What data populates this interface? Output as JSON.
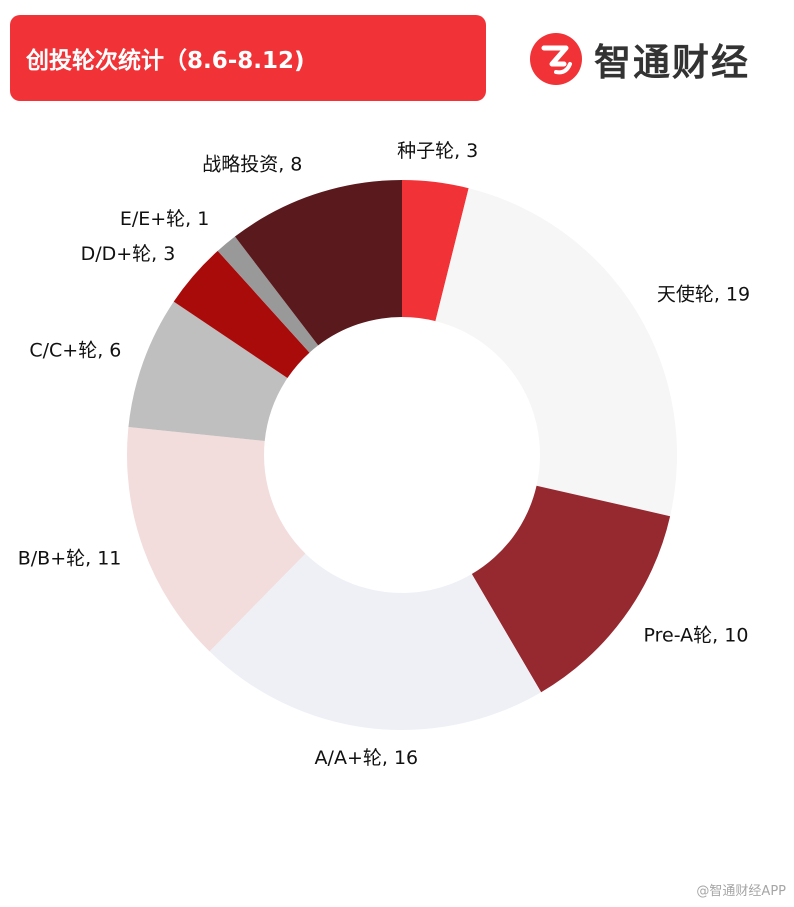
{
  "header": {
    "title": "创投轮次统计（8.6-8.12)"
  },
  "brand": {
    "name": "智通财经",
    "logo_icon": "zhitong-logo-icon",
    "logo_color": "#f13337"
  },
  "chart_data": {
    "type": "pie",
    "donut": true,
    "categories": [
      "种子轮",
      "天使轮",
      "Pre-A轮",
      "A/A+轮",
      "B/B+轮",
      "C/C+轮",
      "D/D+轮",
      "E/E+轮",
      "战略投资"
    ],
    "values": [
      3,
      19,
      10,
      16,
      11,
      6,
      3,
      1,
      8
    ],
    "labels": [
      "种子轮, 3",
      "天使轮, 19",
      "Pre-A轮, 10",
      "A/A+轮, 16",
      "B/B+轮, 11",
      "C/C+轮, 6",
      "D/D+轮, 3",
      "E/E+轮, 1",
      "战略投资, 8"
    ],
    "colors": [
      "#f13337",
      "#f6f6f6",
      "#962830",
      "#eef0f5",
      "#f3dcdc",
      "#bfbfbf",
      "#a90b0b",
      "#999999",
      "#5a191c"
    ],
    "start_angle": "12 o'clock",
    "direction": "clockwise",
    "legend": "none"
  },
  "footer": {
    "watermark": "@智通财经APP"
  }
}
